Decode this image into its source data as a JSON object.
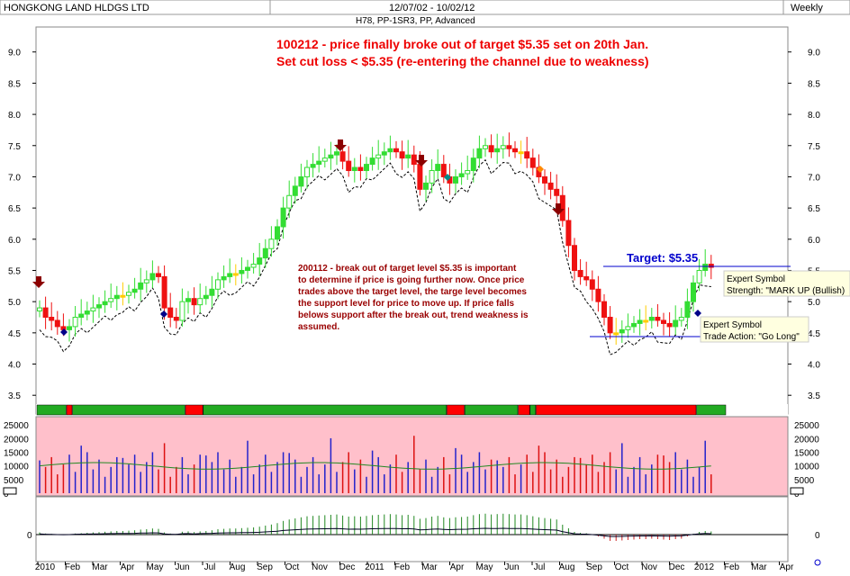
{
  "header": {
    "symbol": "HONGKONG LAND HLDGS LTD",
    "date_range": "12/07/02 - 10/02/12",
    "subtitle": "H78, PP-1SR3, PP, Advanced",
    "period": "Weekly"
  },
  "annotations": {
    "top_red_line1": "100212 - price finally broke out of target $5.35 set on 20th Jan.",
    "top_red_line2": "Set cut loss < $5.35 (re-entering the channel due to weakness)",
    "middle_note": [
      "200112 - break out of target level $5.35 is important",
      "to determine if price is going further now. Once price",
      "trades above the target level, the targe level becomes",
      "the support level for price to move up. If price falls",
      "belows support after the break out, trend weakness is",
      "assumed."
    ],
    "target_label": "Target: $5.35",
    "expert1_title": "Expert Symbol",
    "expert1_text": "Strength: \"MARK UP (Bullish)",
    "expert2_title": "Expert Symbol",
    "expert2_text": "Trade Action: \"Go Long\""
  },
  "colors": {
    "up_bar": "#33dd33",
    "down_bar": "#ee1111",
    "neutral_bar": "#ffcc00",
    "volume_bg": "#ffc0cb",
    "volume_up": "#2222cc",
    "volume_down": "#dd1111",
    "ribbon_green": "#22aa22",
    "ribbon_red": "#ff0000",
    "annotation_red": "#ee0000",
    "annotation_dark_red": "#990000",
    "target_blue": "#0000cc"
  },
  "chart_data": [
    {
      "type": "candlestick",
      "title": "HONGKONG LAND HLDGS LTD",
      "ylim": [
        3.2,
        9.4
      ],
      "y_ticks": [
        "3.5",
        "4.0",
        "4.5",
        "5.0",
        "5.5",
        "6.0",
        "6.5",
        "7.0",
        "7.5",
        "8.0",
        "8.5",
        "9.0"
      ],
      "x_tick_labels": [
        "2010",
        "Feb",
        "Mar",
        "Apr",
        "May",
        "Jun",
        "Jul",
        "Aug",
        "Sep",
        "Oct",
        "Nov",
        "Dec",
        "2011",
        "Feb",
        "Mar",
        "Apr",
        "May",
        "Jun",
        "Jul",
        "Aug",
        "Sep",
        "Oct",
        "Nov",
        "Dec",
        "2012",
        "Feb",
        "Mar",
        "Apr"
      ],
      "target_level": 5.35,
      "closes": [
        4.9,
        4.75,
        4.7,
        4.6,
        4.55,
        4.6,
        4.75,
        4.8,
        4.85,
        4.9,
        4.95,
        5.0,
        5.05,
        5.1,
        5.1,
        5.15,
        5.2,
        5.3,
        5.35,
        5.45,
        5.4,
        4.9,
        4.75,
        4.7,
        5.0,
        5.05,
        4.95,
        5.05,
        5.1,
        5.2,
        5.35,
        5.4,
        5.45,
        5.45,
        5.5,
        5.55,
        5.6,
        5.7,
        5.85,
        6.0,
        6.2,
        6.5,
        6.7,
        6.85,
        7.0,
        7.15,
        7.2,
        7.25,
        7.3,
        7.35,
        7.4,
        7.25,
        7.1,
        7.15,
        7.1,
        7.2,
        7.3,
        7.35,
        7.4,
        7.45,
        7.4,
        7.3,
        7.35,
        7.2,
        6.8,
        6.9,
        7.1,
        7.2,
        7.0,
        6.9,
        7.0,
        7.05,
        7.1,
        7.3,
        7.45,
        7.5,
        7.4,
        7.45,
        7.5,
        7.45,
        7.4,
        7.4,
        7.3,
        7.15,
        7.0,
        6.9,
        6.8,
        6.7,
        6.3,
        5.9,
        5.5,
        5.4,
        5.35,
        5.2,
        5.0,
        4.75,
        4.5,
        4.5,
        4.55,
        4.6,
        4.65,
        4.7,
        4.7,
        4.75,
        4.7,
        4.65,
        4.6,
        4.7,
        4.75,
        5.0,
        5.3,
        5.5,
        5.6,
        5.55
      ],
      "volume_ylim": [
        0,
        27000
      ],
      "volume_ticks": [
        "0",
        "5000",
        "10000",
        "15000",
        "20000",
        "25000"
      ],
      "volume_ma": 10000,
      "ribbon_segments": [
        {
          "state": "bull",
          "weeks": [
            0,
            4
          ]
        },
        {
          "state": "bear",
          "weeks": [
            5,
            5
          ]
        },
        {
          "state": "bull",
          "weeks": [
            6,
            24
          ]
        },
        {
          "state": "bear",
          "weeks": [
            25,
            27
          ]
        },
        {
          "state": "bull",
          "weeks": [
            28,
            68
          ]
        },
        {
          "state": "bear",
          "weeks": [
            69,
            71
          ]
        },
        {
          "state": "bull",
          "weeks": [
            72,
            80
          ]
        },
        {
          "state": "bear",
          "weeks": [
            81,
            82
          ]
        },
        {
          "state": "bull",
          "weeks": [
            83,
            83
          ]
        },
        {
          "state": "bear",
          "weeks": [
            84,
            110
          ]
        },
        {
          "state": "bull",
          "weeks": [
            111,
            115
          ]
        }
      ]
    }
  ]
}
